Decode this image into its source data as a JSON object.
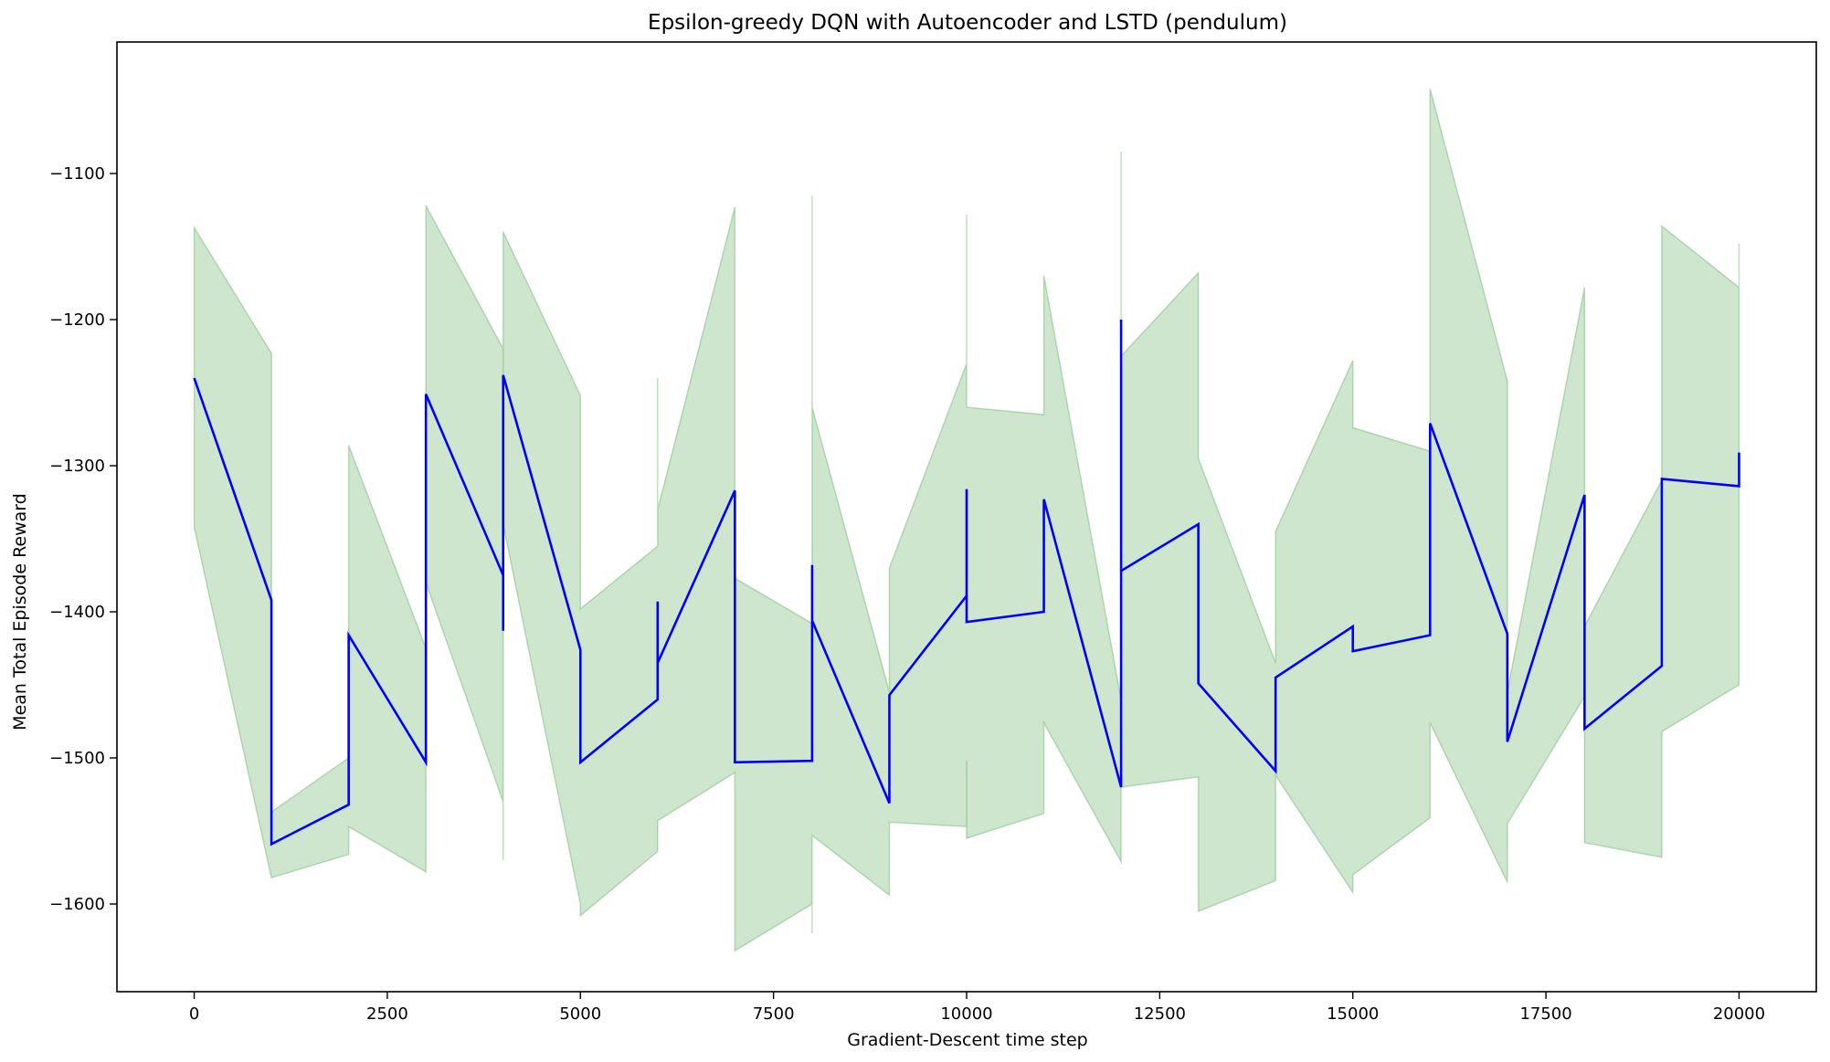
{
  "chart_data": {
    "type": "line",
    "title": "Epsilon-greedy DQN with Autoencoder and LSTD (pendulum)",
    "xlabel": "Gradient-Descent time step",
    "ylabel": "Mean Total Episode Reward",
    "xlim": [
      -1000,
      21000
    ],
    "ylim": [
      -1660,
      -1010
    ],
    "xticks": [
      0,
      2500,
      5000,
      7500,
      10000,
      12500,
      15000,
      17500,
      20000
    ],
    "xtick_labels": [
      "0",
      "2500",
      "5000",
      "7500",
      "10000",
      "12500",
      "15000",
      "17500",
      "20000"
    ],
    "yticks": [
      -1600,
      -1500,
      -1400,
      -1300,
      -1200,
      -1100
    ],
    "ytick_labels": [
      "−1600",
      "−1500",
      "−1400",
      "−1300",
      "−1200",
      "−1100"
    ],
    "grid": false,
    "colors": {
      "mean_line": "#0000ff",
      "band_fill": "#4aa34a",
      "band_edge": "#4aa34a"
    },
    "series": [
      {
        "type": "line",
        "x": [
          0,
          1000,
          1000,
          2000,
          2000,
          3000,
          3000,
          4000,
          4000,
          4000,
          5000,
          5000,
          6000,
          6000,
          6000,
          7000,
          7000,
          8000,
          8000,
          8000,
          9000,
          9000,
          10000,
          10000,
          10000,
          11000,
          11000,
          12000,
          12000,
          12000,
          13000,
          13000,
          14000,
          14000,
          15000,
          15000,
          16000,
          16000,
          17000,
          17000,
          18000,
          18000,
          19000,
          19000,
          20000,
          20000
        ],
        "y": [
          -1240,
          -1392,
          -1559,
          -1532,
          -1416,
          -1503,
          -1251,
          -1375,
          -1413,
          -1238,
          -1426,
          -1503,
          -1460,
          -1393,
          -1435,
          -1317,
          -1503,
          -1502,
          -1368,
          -1406,
          -1531,
          -1457,
          -1389,
          -1316,
          -1407,
          -1400,
          -1323,
          -1520,
          -1200,
          -1372,
          -1340,
          -1449,
          -1509,
          -1445,
          -1410,
          -1427,
          -1416,
          -1271,
          -1415,
          -1489,
          -1320,
          -1480,
          -1437,
          -1309,
          -1314,
          -1291
        ]
      },
      {
        "type": "area",
        "x": [
          0,
          1000,
          1000,
          2000,
          2000,
          3000,
          3000,
          4000,
          4000,
          4000,
          5000,
          5000,
          6000,
          6000,
          6000,
          7000,
          7000,
          8000,
          8000,
          8000,
          9000,
          9000,
          10000,
          10000,
          10000,
          11000,
          11000,
          12000,
          12000,
          12000,
          13000,
          13000,
          14000,
          14000,
          15000,
          15000,
          16000,
          16000,
          17000,
          17000,
          18000,
          18000,
          19000,
          19000,
          20000,
          20000
        ],
        "upper": [
          -1137,
          -1223,
          -1537,
          -1500,
          -1286,
          -1425,
          -1122,
          -1220,
          -1250,
          -1140,
          -1252,
          -1398,
          -1355,
          -1240,
          -1330,
          -1123,
          -1377,
          -1408,
          -1115,
          -1260,
          -1455,
          -1370,
          -1230,
          -1128,
          -1260,
          -1265,
          -1170,
          -1460,
          -1085,
          -1225,
          -1168,
          -1295,
          -1435,
          -1345,
          -1228,
          -1274,
          -1290,
          -1042,
          -1242,
          -1455,
          -1178,
          -1410,
          -1310,
          -1136,
          -1178,
          -1148
        ],
        "lower": [
          -1342,
          -1582,
          -1582,
          -1566,
          -1547,
          -1578,
          -1380,
          -1530,
          -1570,
          -1340,
          -1600,
          -1608,
          -1564,
          -1543,
          -1543,
          -1510,
          -1632,
          -1600,
          -1620,
          -1553,
          -1594,
          -1544,
          -1547,
          -1502,
          -1555,
          -1538,
          -1476,
          -1571,
          -1520,
          -1520,
          -1513,
          -1605,
          -1584,
          -1512,
          -1592,
          -1580,
          -1541,
          -1476,
          -1585,
          -1545,
          -1458,
          -1558,
          -1568,
          -1482,
          -1450,
          -1450
        ]
      }
    ]
  }
}
